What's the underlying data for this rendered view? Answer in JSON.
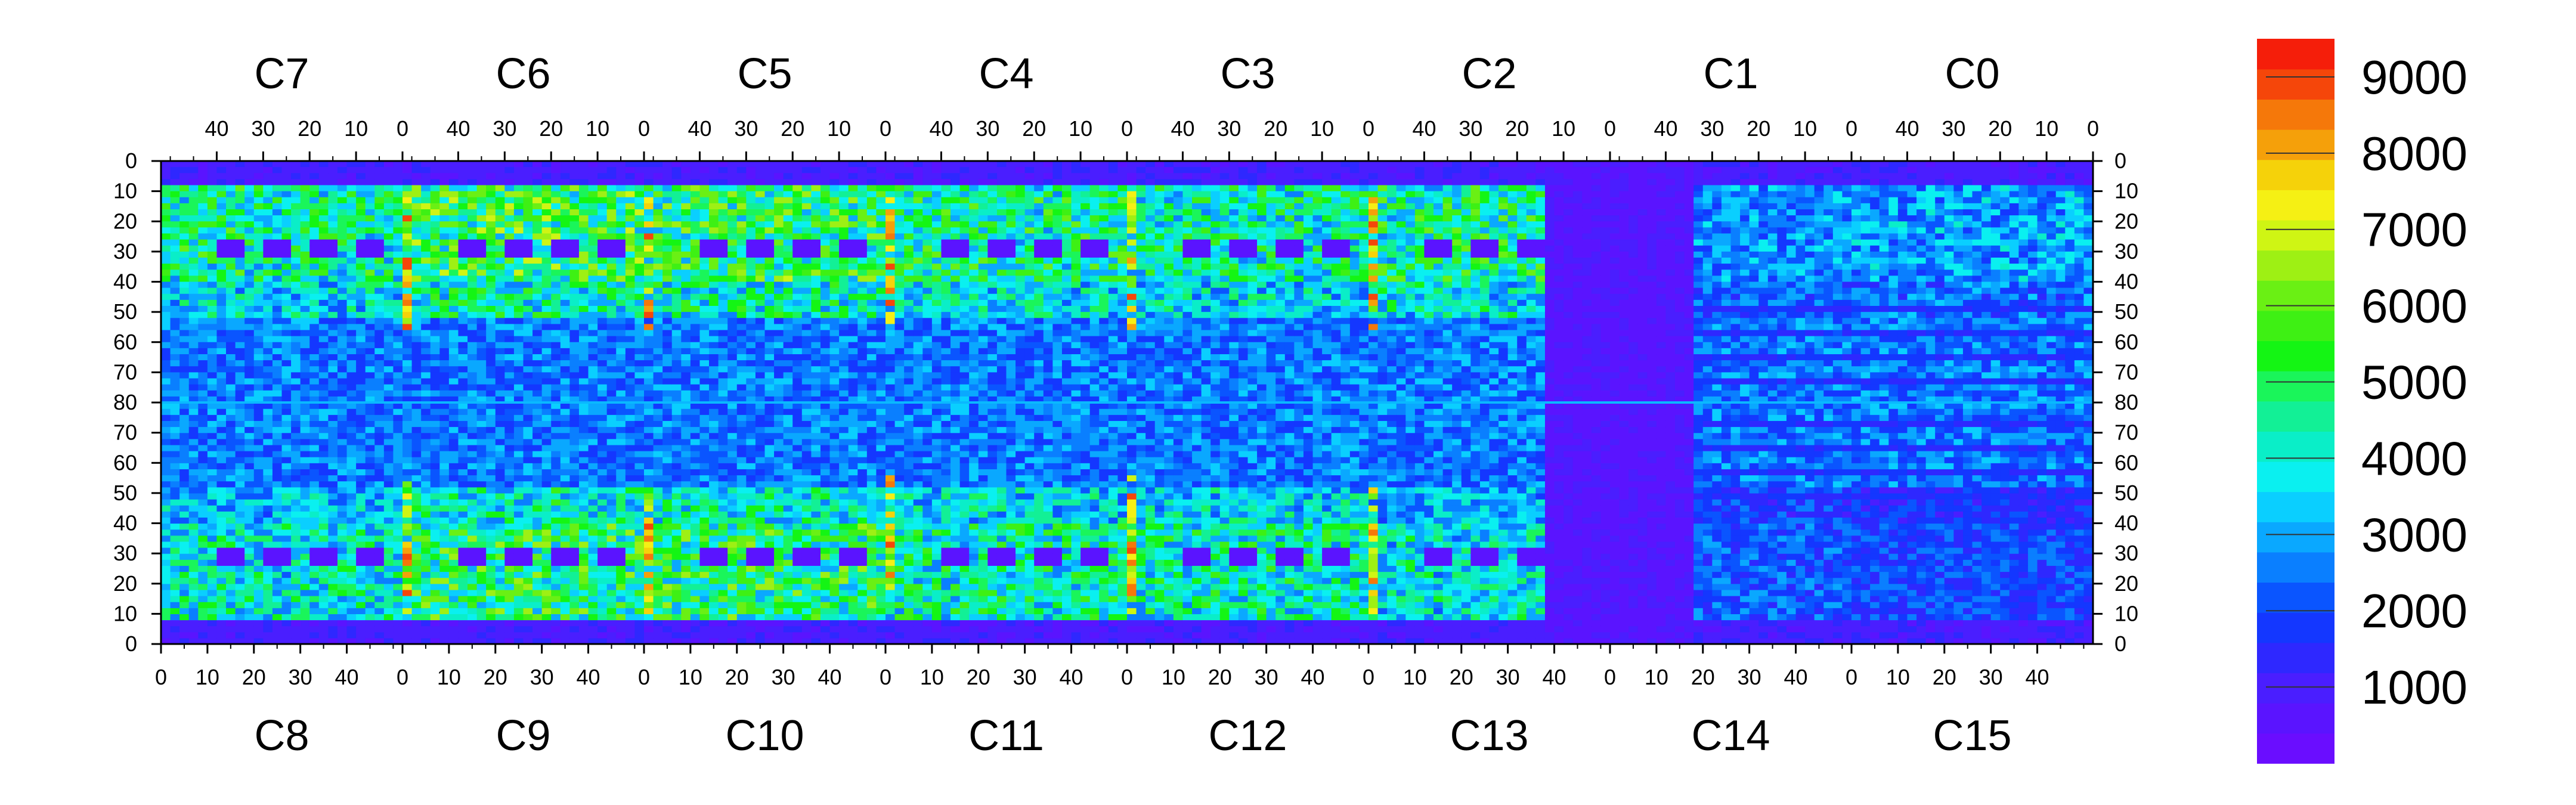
{
  "chart_data": {
    "type": "heatmap",
    "chips_top": [
      "C7",
      "C6",
      "C5",
      "C4",
      "C3",
      "C2",
      "C1",
      "C0"
    ],
    "chips_bottom": [
      "C8",
      "C9",
      "C10",
      "C11",
      "C12",
      "C13",
      "C14",
      "C15"
    ],
    "top_axis_ticks": [
      "40",
      "30",
      "20",
      "10",
      "0"
    ],
    "bottom_axis_ticks": [
      "0",
      "10",
      "20",
      "30",
      "40"
    ],
    "left_axis_ticks": [
      "0",
      "10",
      "20",
      "30",
      "40",
      "50",
      "60",
      "70",
      "80",
      "70",
      "60",
      "50",
      "40",
      "30",
      "20",
      "10",
      "0"
    ],
    "right_axis_ticks": [
      "0",
      "10",
      "20",
      "30",
      "40",
      "50",
      "60",
      "70",
      "80",
      "70",
      "60",
      "50",
      "40",
      "30",
      "20",
      "10",
      "0"
    ],
    "colorbar": {
      "min": 0,
      "max": 9500,
      "ticks": [
        "1000",
        "2000",
        "3000",
        "4000",
        "5000",
        "6000",
        "7000",
        "8000",
        "9000"
      ],
      "colors": [
        "#6a0dff",
        "#5a14ff",
        "#4a1eff",
        "#2e28ff",
        "#1437ff",
        "#0a55ff",
        "#0a7fff",
        "#0aa8ff",
        "#0acfff",
        "#0af0f0",
        "#0aeec8",
        "#12f096",
        "#1af55a",
        "#14f514",
        "#3ef014",
        "#6af014",
        "#9ef014",
        "#cff514",
        "#f5f014",
        "#f5d20a",
        "#f5a00a",
        "#f5780a",
        "#f5460a",
        "#f51e0a"
      ]
    },
    "grid": {
      "chips_per_row": 8,
      "columns_per_chip": 52,
      "rows_per_half": 80
    },
    "background_value": 700,
    "bands": {
      "top": [
        {
          "chip": "C7",
          "level": 4800
        },
        {
          "chip": "C6",
          "level": 5600
        },
        {
          "chip": "C5",
          "level": 5400
        },
        {
          "chip": "C4",
          "level": 4900
        },
        {
          "chip": "C3",
          "level": 4700
        },
        {
          "chip": "C2",
          "level": 5000
        },
        {
          "chip": "C1",
          "level": 3000
        },
        {
          "chip": "C0",
          "level": 3200
        }
      ],
      "bottom": [
        {
          "chip": "C8",
          "level": 4300
        },
        {
          "chip": "C9",
          "level": 5300
        },
        {
          "chip": "C10",
          "level": 5300
        },
        {
          "chip": "C11",
          "level": 4700
        },
        {
          "chip": "C12",
          "level": 4600
        },
        {
          "chip": "C13",
          "level": 4200
        },
        {
          "chip": "C14",
          "level": 2500
        },
        {
          "chip": "C15",
          "level": 2200
        }
      ]
    },
    "hot_columns_value": 8500,
    "dead_region": "C13/C14 (right part of C2 and left part of C1)"
  }
}
